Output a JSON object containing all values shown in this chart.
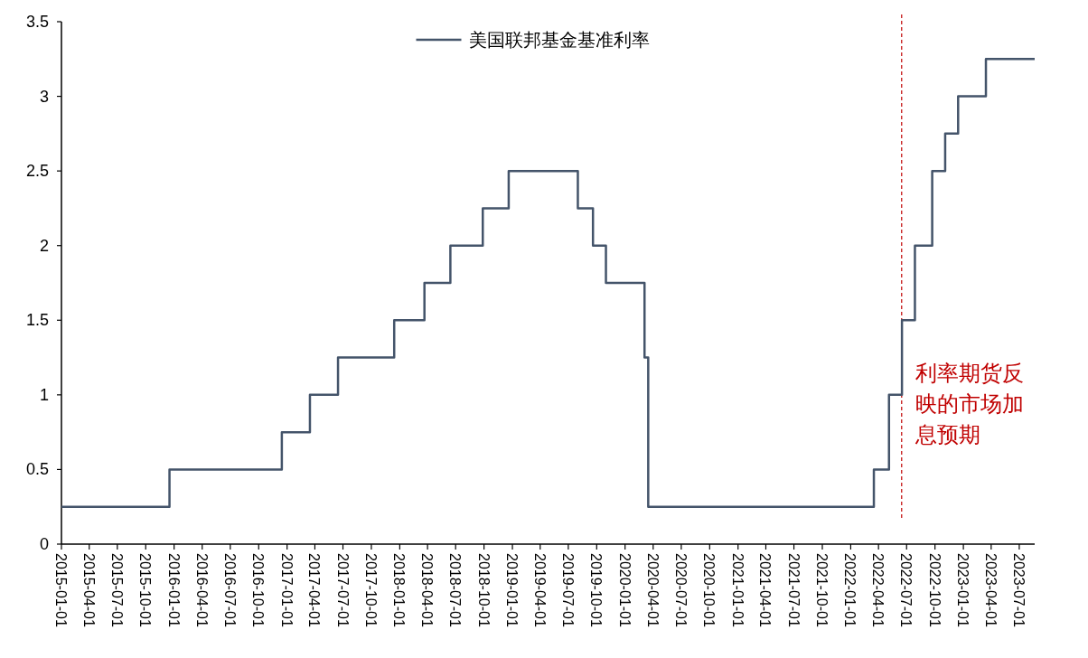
{
  "chart_data": {
    "type": "step",
    "series": [
      {
        "name": "美国联邦基金基准利率",
        "color": "#44546a",
        "x": [
          "2015-01-01",
          "2015-12-17",
          "2016-12-15",
          "2017-03-16",
          "2017-06-15",
          "2017-12-14",
          "2018-03-22",
          "2018-06-14",
          "2018-09-27",
          "2018-12-20",
          "2019-08-01",
          "2019-09-19",
          "2019-10-31",
          "2020-03-04",
          "2020-03-16",
          "2022-03-17",
          "2022-05-05",
          "2022-06-16",
          "2022-07-28",
          "2022-09-22",
          "2022-11-03",
          "2022-12-15",
          "2023-03-15",
          "2023-08-20"
        ],
        "values": [
          0.25,
          0.5,
          0.75,
          1.0,
          1.25,
          1.5,
          1.75,
          2.0,
          2.25,
          2.5,
          2.25,
          2.0,
          1.75,
          1.25,
          0.25,
          0.5,
          1.0,
          1.5,
          2.0,
          2.5,
          2.75,
          3.0,
          3.25,
          3.25
        ]
      }
    ],
    "xlim": [
      "2015-01-01",
      "2023-08-20"
    ],
    "xticks": [
      "2015-01-01",
      "2015-04-01",
      "2015-07-01",
      "2015-10-01",
      "2016-01-01",
      "2016-04-01",
      "2016-07-01",
      "2016-10-01",
      "2017-01-01",
      "2017-04-01",
      "2017-07-01",
      "2017-10-01",
      "2018-01-01",
      "2018-04-01",
      "2018-07-01",
      "2018-10-01",
      "2019-01-01",
      "2019-04-01",
      "2019-07-01",
      "2019-10-01",
      "2020-01-01",
      "2020-04-01",
      "2020-07-01",
      "2020-10-01",
      "2021-01-01",
      "2021-04-01",
      "2021-07-01",
      "2021-10-01",
      "2022-01-01",
      "2022-04-01",
      "2022-07-01",
      "2022-10-01",
      "2023-01-01",
      "2023-04-01",
      "2023-07-01"
    ],
    "ylim": [
      0,
      3.5
    ],
    "yticks": [
      0,
      {
        "value": 0.5,
        "label": "0.5"
      },
      1,
      {
        "value": 1.5,
        "label": "1.5"
      },
      2,
      {
        "value": 2.5,
        "label": "2.5"
      },
      3,
      {
        "value": 3.5,
        "label": "3.5"
      }
    ],
    "ref_lines": [
      {
        "axis": "x",
        "value": "2022-06-15",
        "label": "利率期货反映的市场加息预期",
        "color": "#c00000",
        "line_style": "dashed"
      }
    ],
    "legend": "top",
    "grid": false
  }
}
